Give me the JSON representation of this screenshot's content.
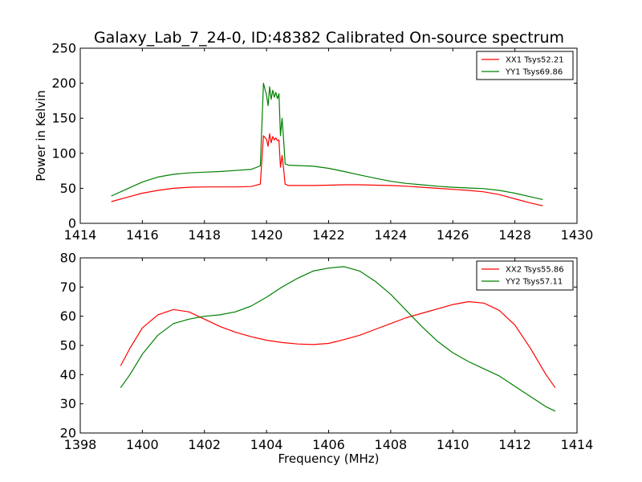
{
  "figure_title": "Galaxy_Lab_7_24-0, ID:48382 Calibrated On-source spectrum",
  "colors": {
    "series_1": "#ff0000",
    "series_2": "#008000",
    "axes": "#000000",
    "background": "#ffffff"
  },
  "chart_data": [
    {
      "type": "line",
      "title": "Galaxy_Lab_7_24-0, ID:48382 Calibrated On-source spectrum",
      "xlabel": "",
      "ylabel": "Power in Kelvin",
      "xlim": [
        1414,
        1430
      ],
      "ylim": [
        0,
        250
      ],
      "xticks": [
        "1414",
        "1416",
        "1418",
        "1420",
        "1422",
        "1424",
        "1426",
        "1428",
        "1430"
      ],
      "yticks": [
        "0",
        "50",
        "100",
        "150",
        "200",
        "250"
      ],
      "grid": false,
      "legend_position": "top-right",
      "series": [
        {
          "name": "XX1 Tsys52.21",
          "color": "#ff0000",
          "x": [
            1415.0,
            1415.5,
            1416.0,
            1416.5,
            1417.0,
            1417.5,
            1418.0,
            1418.5,
            1419.0,
            1419.5,
            1419.8,
            1419.9,
            1420.0,
            1420.05,
            1420.1,
            1420.15,
            1420.2,
            1420.25,
            1420.3,
            1420.35,
            1420.4,
            1420.45,
            1420.5,
            1420.55,
            1420.6,
            1420.7,
            1421.0,
            1421.5,
            1422.0,
            1422.5,
            1423.0,
            1423.5,
            1424.0,
            1424.5,
            1425.0,
            1425.5,
            1426.0,
            1426.5,
            1427.0,
            1427.5,
            1428.0,
            1428.5,
            1428.9
          ],
          "y": [
            31,
            37,
            43,
            47,
            50,
            51.5,
            52,
            52,
            52,
            52.5,
            56,
            125,
            120,
            110,
            128,
            115,
            124,
            119,
            122,
            118,
            119,
            80,
            97,
            78,
            56,
            54,
            54,
            54,
            54.5,
            55,
            55,
            54.5,
            54,
            53,
            51.5,
            50,
            48.5,
            47,
            45,
            41,
            35,
            29,
            25
          ]
        },
        {
          "name": "YY1 Tsys69.86",
          "color": "#008000",
          "x": [
            1415.0,
            1415.5,
            1416.0,
            1416.5,
            1417.0,
            1417.5,
            1418.0,
            1418.5,
            1419.0,
            1419.5,
            1419.8,
            1419.9,
            1420.0,
            1420.05,
            1420.1,
            1420.15,
            1420.2,
            1420.25,
            1420.3,
            1420.35,
            1420.4,
            1420.45,
            1420.5,
            1420.55,
            1420.6,
            1420.7,
            1421.0,
            1421.5,
            1422.0,
            1422.5,
            1423.0,
            1423.5,
            1424.0,
            1424.5,
            1425.0,
            1425.5,
            1426.0,
            1426.5,
            1427.0,
            1427.5,
            1428.0,
            1428.5,
            1428.9
          ],
          "y": [
            39,
            49,
            59,
            66,
            70,
            72,
            73,
            74,
            75.5,
            77,
            82,
            200,
            183,
            168,
            195,
            177,
            190,
            180,
            187,
            178,
            185,
            125,
            150,
            120,
            85,
            83,
            82.5,
            81.5,
            78.5,
            74,
            69,
            64.5,
            60,
            57,
            55,
            53,
            51.5,
            50.5,
            49.5,
            47,
            43,
            38,
            34
          ]
        }
      ]
    },
    {
      "type": "line",
      "title": "",
      "xlabel": "Frequency (MHz)",
      "ylabel": "",
      "xlim": [
        1398,
        1414
      ],
      "ylim": [
        20,
        80
      ],
      "xticks": [
        "1398",
        "1400",
        "1402",
        "1404",
        "1406",
        "1408",
        "1410",
        "1412",
        "1414"
      ],
      "yticks": [
        "20",
        "30",
        "40",
        "50",
        "60",
        "70",
        "80"
      ],
      "grid": false,
      "legend_position": "top-right",
      "series": [
        {
          "name": "XX2 Tsys55.86",
          "color": "#ff0000",
          "x": [
            1399.3,
            1399.6,
            1400.0,
            1400.5,
            1401.0,
            1401.5,
            1402.0,
            1402.5,
            1403.0,
            1403.5,
            1404.0,
            1404.5,
            1405.0,
            1405.5,
            1406.0,
            1406.5,
            1407.0,
            1407.5,
            1408.0,
            1408.5,
            1409.0,
            1409.5,
            1410.0,
            1410.5,
            1411.0,
            1411.5,
            1412.0,
            1412.5,
            1413.0,
            1413.3
          ],
          "y": [
            43,
            49,
            56,
            60.5,
            62.3,
            61.5,
            59,
            56.5,
            54.5,
            53,
            51.8,
            51,
            50.5,
            50.3,
            50.7,
            52,
            53.5,
            55.5,
            57.5,
            59.5,
            61,
            62.5,
            64,
            65,
            64.5,
            62,
            57,
            49,
            40,
            35.5
          ]
        },
        {
          "name": "YY2 Tsys57.11",
          "color": "#008000",
          "x": [
            1399.3,
            1399.6,
            1400.0,
            1400.5,
            1401.0,
            1401.5,
            1402.0,
            1402.5,
            1403.0,
            1403.5,
            1404.0,
            1404.5,
            1405.0,
            1405.5,
            1406.0,
            1406.5,
            1407.0,
            1407.5,
            1408.0,
            1408.5,
            1409.0,
            1409.5,
            1410.0,
            1410.5,
            1411.0,
            1411.5,
            1412.0,
            1412.5,
            1413.0,
            1413.3
          ],
          "y": [
            35.5,
            40,
            47,
            53.5,
            57.5,
            59,
            60,
            60.5,
            61.5,
            63.5,
            66.5,
            70,
            73,
            75.5,
            76.5,
            77,
            75.5,
            72,
            67.5,
            62,
            56.5,
            51.5,
            47.5,
            44.5,
            42,
            39.5,
            36,
            32.5,
            29,
            27.5
          ]
        }
      ]
    }
  ]
}
